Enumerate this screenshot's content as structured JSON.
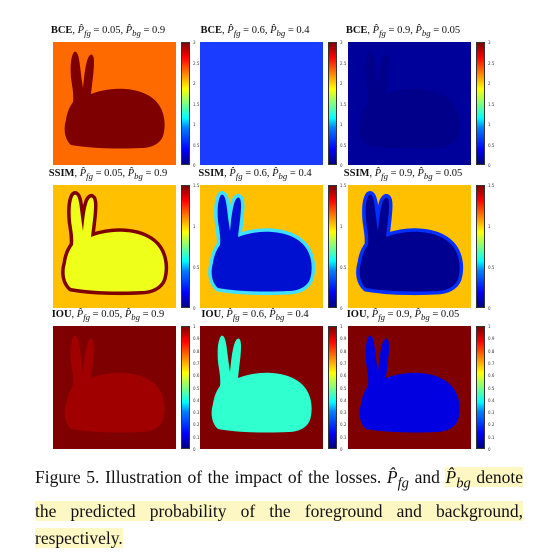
{
  "panels": [
    {
      "loss": "BCE",
      "pfg": "0.05",
      "pbg": "0.9",
      "bg": "#ff6a00",
      "fg": "#7f0000",
      "ticks": [
        "3",
        "2.5",
        "2",
        "1.5",
        "1",
        "0.5",
        "0"
      ]
    },
    {
      "loss": "BCE",
      "pfg": "0.6",
      "pbg": "0.4",
      "bg": "#1a3cff",
      "fg": "#1a3cff",
      "ticks": [
        "3",
        "2.5",
        "2",
        "1.5",
        "1",
        "0.5",
        "0"
      ]
    },
    {
      "loss": "BCE",
      "pfg": "0.9",
      "pbg": "0.05",
      "bg": "#00009a",
      "fg": "#00008a",
      "ticks": [
        "3",
        "2.5",
        "2",
        "1.5",
        "1",
        "0.5",
        "0"
      ]
    },
    {
      "loss": "SSIM",
      "pfg": "0.05",
      "pbg": "0.9",
      "bg": "#ffc000",
      "fg": "#eeff1a",
      "edge": "#7f0000",
      "ticks": [
        "1.5",
        "1",
        "0.5",
        "0"
      ]
    },
    {
      "loss": "SSIM",
      "pfg": "0.6",
      "pbg": "0.4",
      "bg": "#ffc000",
      "fg": "#0010d0",
      "edge": "#40e0ff",
      "ticks": [
        "1.5",
        "1",
        "0.5",
        "0"
      ]
    },
    {
      "loss": "SSIM",
      "pfg": "0.9",
      "pbg": "0.05",
      "bg": "#ffc000",
      "fg": "#000090",
      "edge": "#0030ff",
      "ticks": [
        "1.5",
        "1",
        "0.5",
        "0"
      ]
    },
    {
      "loss": "IOU",
      "pfg": "0.05",
      "pbg": "0.9",
      "bg": "#7f0000",
      "fg": "#a00000",
      "ticks": [
        "1",
        "0.9",
        "0.8",
        "0.7",
        "0.6",
        "0.5",
        "0.4",
        "0.3",
        "0.2",
        "0.1",
        "0"
      ]
    },
    {
      "loss": "IOU",
      "pfg": "0.6",
      "pbg": "0.4",
      "bg": "#7f0000",
      "fg": "#30ffd0",
      "ticks": [
        "1",
        "0.9",
        "0.8",
        "0.7",
        "0.6",
        "0.5",
        "0.4",
        "0.3",
        "0.2",
        "0.1",
        "0"
      ]
    },
    {
      "loss": "IOU",
      "pfg": "0.9",
      "pbg": "0.05",
      "bg": "#7f0000",
      "fg": "#0000e0",
      "ticks": [
        "1",
        "0.9",
        "0.8",
        "0.7",
        "0.6",
        "0.5",
        "0.4",
        "0.3",
        "0.2",
        "0.1",
        "0"
      ]
    }
  ],
  "caption": {
    "label": "Figure 5.",
    "text1": "Illustration of the impact of the losses.",
    "sym_fg": "P̂",
    "sub_fg": "fg",
    "and": "and",
    "sym_bg": "P̂",
    "sub_bg": "bg",
    "text2": "denote the predicted probability of the foreground and background, respectively."
  }
}
